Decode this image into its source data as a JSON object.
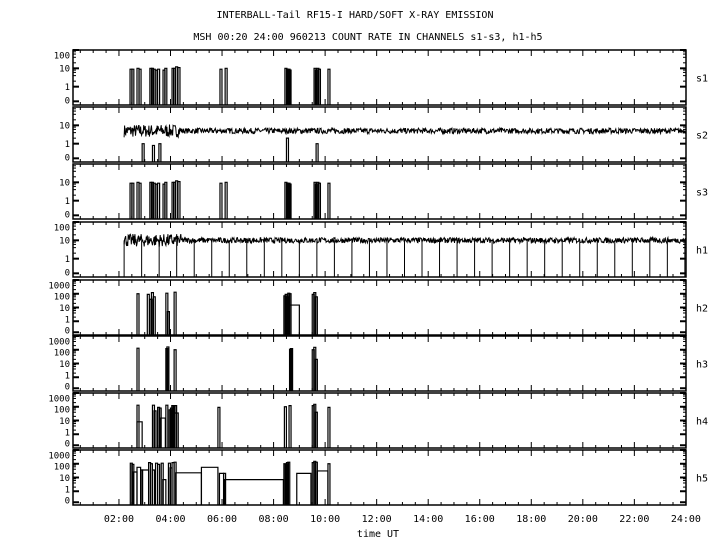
{
  "chart_data": {
    "type": "line",
    "title": "INTERBALL-Tail RF15-I HARD/SOFT X-RAY EMISSION",
    "subtitle": "MSH 00:20 24:00 960213  COUNT RATE IN CHANNELS s1-s3, h1-h5",
    "xlabel": "time UT",
    "xlim_hours": [
      0.333,
      24
    ],
    "x_tick_labels": [
      "02:00",
      "04:00",
      "06:00",
      "08:00",
      "10:00",
      "12:00",
      "14:00",
      "16:00",
      "18:00",
      "20:00",
      "22:00",
      "24:00"
    ],
    "y_scale": "log (with 0 at bottom)",
    "grid": false,
    "line_color": "#000000",
    "background": "#ffffff",
    "panels": [
      {
        "name": "s1",
        "yticks": [
          "0",
          "1",
          "10",
          "100"
        ],
        "ymax": 100,
        "spikes": [
          [
            2.43,
            9
          ],
          [
            2.5,
            9
          ],
          [
            2.7,
            10
          ],
          [
            2.78,
            9
          ],
          [
            3.2,
            10
          ],
          [
            3.26,
            10
          ],
          [
            3.33,
            9
          ],
          [
            3.4,
            8
          ],
          [
            3.5,
            9
          ],
          [
            3.71,
            8
          ],
          [
            3.78,
            10
          ],
          [
            4.06,
            10
          ],
          [
            4.12,
            10
          ],
          [
            4.2,
            12
          ],
          [
            4.29,
            11
          ],
          [
            5.92,
            9
          ],
          [
            6.12,
            10
          ],
          [
            8.44,
            10
          ],
          [
            8.5,
            9
          ],
          [
            8.56,
            9
          ],
          [
            8.6,
            8
          ],
          [
            9.57,
            10
          ],
          [
            9.62,
            8
          ],
          [
            9.68,
            10
          ],
          [
            9.74,
            9
          ],
          [
            10.11,
            9
          ]
        ],
        "steps": []
      },
      {
        "name": "s2",
        "yticks": [
          "0",
          "1",
          "10"
        ],
        "ymax": 100,
        "spikes": [
          [
            2.9,
            1
          ],
          [
            3.3,
            0.8
          ],
          [
            3.55,
            1
          ],
          [
            8.5,
            2
          ],
          [
            9.65,
            1
          ]
        ],
        "steps": [],
        "baseline": {
          "start": 2.2,
          "end": 24,
          "level": 5
        }
      },
      {
        "name": "s3",
        "yticks": [
          "0",
          "1",
          "10"
        ],
        "ymax": 100,
        "spikes": [
          [
            2.43,
            9
          ],
          [
            2.5,
            9
          ],
          [
            2.7,
            10
          ],
          [
            2.78,
            9
          ],
          [
            3.2,
            10
          ],
          [
            3.26,
            10
          ],
          [
            3.33,
            9
          ],
          [
            3.4,
            8
          ],
          [
            3.5,
            9
          ],
          [
            3.71,
            8
          ],
          [
            3.78,
            10
          ],
          [
            4.06,
            10
          ],
          [
            4.12,
            10
          ],
          [
            4.2,
            12
          ],
          [
            4.29,
            11
          ],
          [
            5.92,
            9
          ],
          [
            6.12,
            10
          ],
          [
            8.44,
            10
          ],
          [
            8.5,
            9
          ],
          [
            8.56,
            9
          ],
          [
            8.6,
            8
          ],
          [
            9.57,
            10
          ],
          [
            9.62,
            8
          ],
          [
            9.68,
            10
          ],
          [
            9.74,
            9
          ],
          [
            10.11,
            9
          ]
        ],
        "steps": []
      },
      {
        "name": "h1",
        "yticks": [
          "0",
          "1",
          "10",
          "100"
        ],
        "ymax": 100,
        "spikes": [],
        "steps": [],
        "baseline": {
          "start": 2.2,
          "end": 24,
          "level": 10
        },
        "dropout_interval_h": 0.68
      },
      {
        "name": "h2",
        "yticks": [
          "0",
          "1",
          "10",
          "100",
          "1000"
        ],
        "ymax": 1000,
        "spikes": [
          [
            2.7,
            100
          ],
          [
            3.1,
            90
          ],
          [
            3.2,
            40
          ],
          [
            3.26,
            120
          ],
          [
            3.33,
            60
          ],
          [
            3.82,
            110
          ],
          [
            3.88,
            5
          ],
          [
            4.14,
            130
          ],
          [
            8.4,
            70
          ],
          [
            8.45,
            90
          ],
          [
            8.5,
            60
          ],
          [
            8.55,
            110
          ],
          [
            8.6,
            100
          ],
          [
            9.5,
            90
          ],
          [
            9.56,
            120
          ],
          [
            9.62,
            60
          ]
        ],
        "steps": [
          [
            8.6,
            9.0,
            15
          ]
        ]
      },
      {
        "name": "h3",
        "yticks": [
          "0",
          "1",
          "10",
          "100",
          "1000"
        ],
        "ymax": 1000,
        "spikes": [
          [
            2.7,
            130
          ],
          [
            3.82,
            120
          ],
          [
            3.86,
            160
          ],
          [
            4.14,
            100
          ],
          [
            8.62,
            110
          ],
          [
            8.66,
            120
          ],
          [
            9.5,
            100
          ],
          [
            9.56,
            150
          ],
          [
            9.62,
            20
          ]
        ],
        "steps": []
      },
      {
        "name": "h4",
        "yticks": [
          "0",
          "1",
          "10",
          "100",
          "1000"
        ],
        "ymax": 1000,
        "spikes": [
          [
            2.7,
            130
          ],
          [
            3.3,
            130
          ],
          [
            3.36,
            50
          ],
          [
            3.5,
            90
          ],
          [
            3.56,
            80
          ],
          [
            3.82,
            130
          ],
          [
            3.95,
            60
          ],
          [
            4.0,
            80
          ],
          [
            4.05,
            120
          ],
          [
            4.1,
            120
          ],
          [
            4.16,
            120
          ],
          [
            5.84,
            90
          ],
          [
            8.42,
            100
          ],
          [
            8.6,
            120
          ],
          [
            9.5,
            120
          ],
          [
            9.56,
            150
          ],
          [
            9.62,
            40
          ],
          [
            10.11,
            90
          ]
        ],
        "steps": [
          [
            2.7,
            2.9,
            8
          ],
          [
            3.6,
            3.8,
            15
          ],
          [
            4.16,
            4.3,
            35
          ]
        ]
      },
      {
        "name": "h5",
        "yticks": [
          "0",
          "1",
          "10",
          "100",
          "1000"
        ],
        "ymax": 1000,
        "spikes": [
          [
            2.44,
            110
          ],
          [
            2.5,
            90
          ],
          [
            2.84,
            35
          ],
          [
            3.15,
            120
          ],
          [
            3.22,
            100
          ],
          [
            3.3,
            35
          ],
          [
            3.42,
            110
          ],
          [
            3.5,
            90
          ],
          [
            3.64,
            110
          ],
          [
            3.92,
            110
          ],
          [
            3.98,
            50
          ],
          [
            4.06,
            120
          ],
          [
            4.14,
            130
          ],
          [
            6.06,
            20
          ],
          [
            8.4,
            100
          ],
          [
            8.45,
            90
          ],
          [
            8.5,
            120
          ],
          [
            8.55,
            130
          ],
          [
            9.5,
            120
          ],
          [
            9.56,
            150
          ],
          [
            9.62,
            130
          ],
          [
            10.11,
            100
          ]
        ],
        "steps": [
          [
            2.55,
            2.7,
            25
          ],
          [
            2.7,
            2.84,
            55
          ],
          [
            2.9,
            3.15,
            35
          ],
          [
            3.7,
            3.82,
            7
          ],
          [
            4.2,
            5.2,
            22
          ],
          [
            5.2,
            5.84,
            55
          ],
          [
            5.9,
            6.06,
            20
          ],
          [
            6.1,
            8.38,
            7
          ],
          [
            8.9,
            9.45,
            20
          ],
          [
            9.7,
            10.11,
            30
          ]
        ]
      }
    ]
  }
}
